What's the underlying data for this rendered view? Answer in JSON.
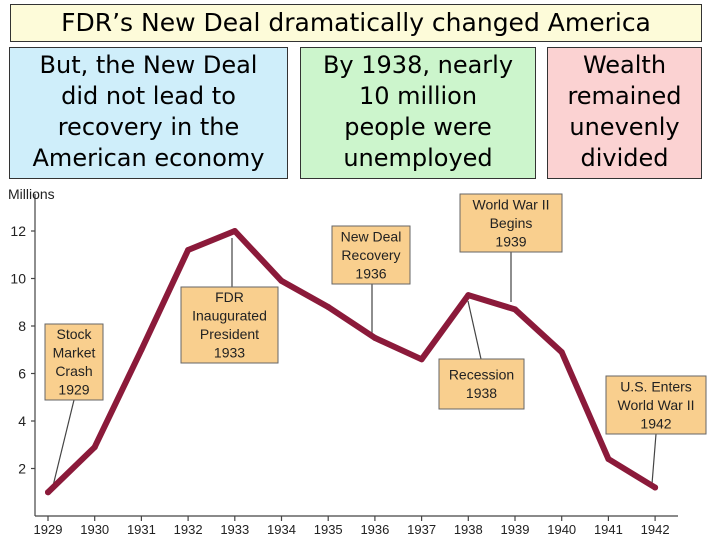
{
  "slide": {
    "title": "FDR’s New Deal dramatically changed America",
    "boxes": [
      {
        "lines": [
          "But, the New Deal",
          "did not lead to",
          "recovery in the",
          "American economy"
        ]
      },
      {
        "lines": [
          "By 1938, nearly",
          "10 million",
          "people were",
          "unemployed"
        ]
      },
      {
        "lines": [
          "Wealth",
          "remained",
          "unevenly",
          "divided"
        ]
      }
    ]
  },
  "chart_data": {
    "type": "line",
    "ylabel": "Millions",
    "x": [
      1929,
      1930,
      1931,
      1932,
      1933,
      1934,
      1935,
      1936,
      1937,
      1938,
      1939,
      1940,
      1941,
      1942
    ],
    "values": [
      1.0,
      2.9,
      7.0,
      11.2,
      12.0,
      9.9,
      8.8,
      7.5,
      6.6,
      9.3,
      8.7,
      6.9,
      2.4,
      1.2
    ],
    "ylim": [
      0,
      13
    ],
    "yticks": [
      2,
      4,
      6,
      8,
      10,
      12
    ],
    "line_color": "#8b1a3a",
    "label_fill": "#f9cf8e",
    "annotations": [
      {
        "lines": [
          "Stock",
          "Market",
          "Crash",
          "1929"
        ],
        "target_year": 1929
      },
      {
        "lines": [
          "FDR",
          "Inaugurated",
          "President",
          "1933"
        ],
        "target_year": 1933
      },
      {
        "lines": [
          "New Deal",
          "Recovery",
          "1936"
        ],
        "target_year": 1936
      },
      {
        "lines": [
          "Recession",
          "1938"
        ],
        "target_year": 1938
      },
      {
        "lines": [
          "World War II",
          "Begins",
          "1939"
        ],
        "target_year": 1939
      },
      {
        "lines": [
          "U.S. Enters",
          "World War II",
          "1942"
        ],
        "target_year": 1942
      }
    ]
  }
}
